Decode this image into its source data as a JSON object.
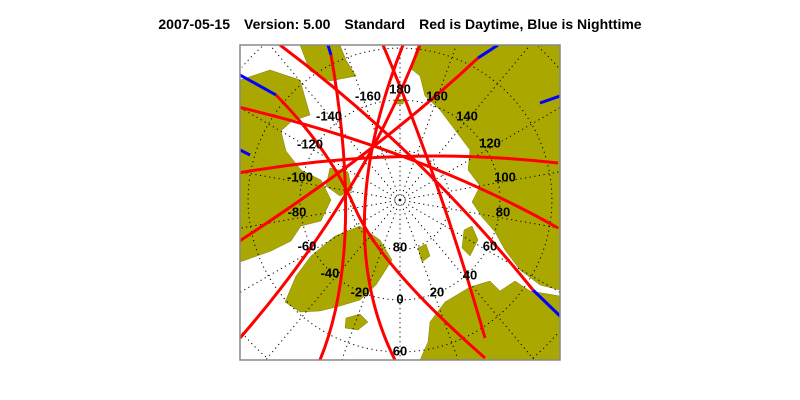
{
  "title": {
    "date": "2007-05-15",
    "version": "Version: 5.00",
    "mode": "Standard",
    "legend": "Red is Daytime, Blue is Nighttime"
  },
  "map": {
    "projection": "north polar stereographic",
    "center": "North Pole",
    "colors": {
      "land": "#aaa800",
      "ocean": "#ffffff",
      "daytime": "#ff0000",
      "nighttime": "#0000ff",
      "grid": "#000000",
      "frame": "#888888"
    },
    "longitude_labels": [
      "180",
      "-160",
      "160",
      "-140",
      "140",
      "-120",
      "120",
      "-100",
      "100",
      "-80",
      "80",
      "-60",
      "60",
      "-40",
      "40",
      "-20",
      "20",
      "0"
    ],
    "latitude_labels": [
      "80",
      "60"
    ]
  }
}
